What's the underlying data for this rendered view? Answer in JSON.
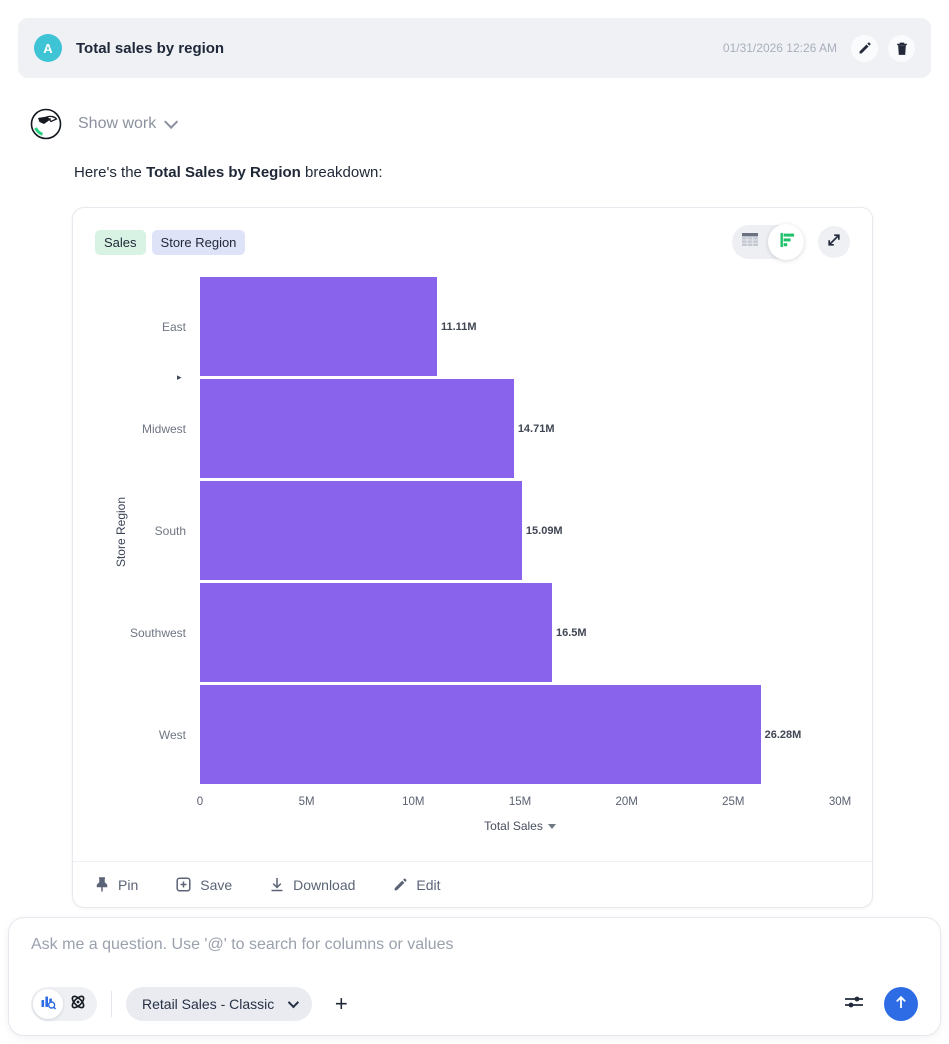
{
  "header": {
    "avatar_initial": "A",
    "title": "Total sales by region",
    "timestamp": "01/31/2026 12:26 AM"
  },
  "show_work": {
    "label": "Show work"
  },
  "message": {
    "prefix": "Here's the ",
    "bold": "Total Sales by Region",
    "suffix": " breakdown:"
  },
  "chart_card": {
    "tags": [
      {
        "label": "Sales",
        "bg": "#d8f3e4"
      },
      {
        "label": "Store Region",
        "bg": "#dee3f8"
      }
    ],
    "footer_actions": {
      "pin": "Pin",
      "save": "Save",
      "download": "Download",
      "edit": "Edit"
    }
  },
  "chart_data": {
    "type": "bar",
    "orientation": "horizontal",
    "title": "Total Sales by Region",
    "categories": [
      "East",
      "Midwest",
      "South",
      "Southwest",
      "West"
    ],
    "values": [
      11110000,
      14710000,
      15090000,
      16500000,
      26280000
    ],
    "value_labels": [
      "11.11M",
      "14.71M",
      "15.09M",
      "16.5M",
      "26.28M"
    ],
    "xlabel": "Total Sales",
    "ylabel": "Store Region",
    "xlim": [
      0,
      30000000
    ],
    "x_ticks": [
      "0",
      "5M",
      "10M",
      "15M",
      "20M",
      "25M",
      "30M"
    ],
    "bar_color": "#8a63ec",
    "grid": false,
    "legend": "none"
  },
  "composer": {
    "placeholder": "Ask me a question. Use '@' to search for columns or values",
    "datasource": "Retail Sales - Classic"
  },
  "colors": {
    "accent_purple": "#8a63ec",
    "send_blue": "#2d6ce4",
    "avatar_teal": "#3fc4d6",
    "chart_icon_green": "#1ec06a"
  }
}
